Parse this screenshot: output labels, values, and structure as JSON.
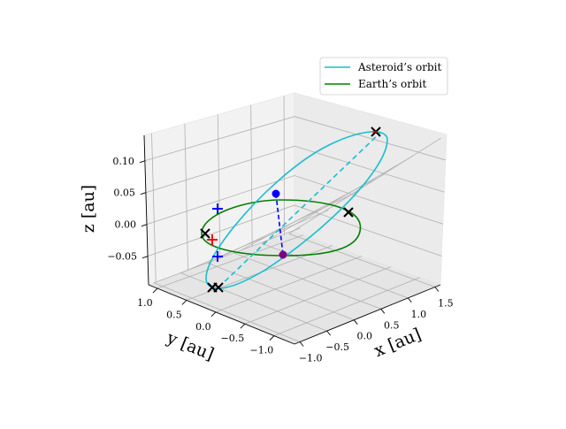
{
  "chart_data": {
    "type": "line",
    "projection": "3d",
    "xlabel": "x [au]",
    "ylabel": "y [au]",
    "zlabel": "z [au]",
    "xlim": [
      -1.1,
      1.6
    ],
    "ylim": [
      -1.35,
      1.15
    ],
    "zlim": [
      -0.095,
      0.14
    ],
    "x_ticks": [
      "−1.0",
      "−0.5",
      "0.0",
      "0.5",
      "1.0",
      "1.5"
    ],
    "y_ticks": [
      "1.0",
      "0.5",
      "0.0",
      "−0.5",
      "−1.0"
    ],
    "z_ticks": [
      "0.10",
      "0.05",
      "0.00",
      "−0.05"
    ],
    "grid": true,
    "legend_position": "upper-right",
    "series": [
      {
        "name": "Asteroid’s orbit",
        "color": "#17becf",
        "shape": "ellipse",
        "semi_major_axis": 1.23,
        "eccentricity": 0.47,
        "inclination_deg": 4.6,
        "perihelion_xyz": [
          -0.5,
          -0.43,
          -0.014
        ],
        "aphelion_xyz": [
          1.3,
          1.11,
          0.1
        ]
      },
      {
        "name": "Earth’s orbit",
        "color": "#008000",
        "shape": "circle",
        "radius": 1.0,
        "z": 0
      }
    ],
    "markers": [
      {
        "symbol": "x",
        "color": "#000000",
        "points": [
          [
            1.3,
            1.11,
            0.1
          ],
          [
            0.95,
            -0.6,
            0.0
          ],
          [
            -0.42,
            -0.45,
            -0.013
          ],
          [
            -0.36,
            -0.49,
            -0.012
          ],
          [
            -0.05,
            0.96,
            0.0
          ]
        ]
      },
      {
        "symbol": "plus",
        "color": "#0000ff",
        "points": [
          [
            0.46,
            0.91,
            0.0
          ],
          [
            -0.78,
            0.25,
            0.0
          ]
        ]
      },
      {
        "symbol": "plus",
        "color": "#ff0000",
        "points": [
          [
            0.0,
            0.95,
            0.0
          ]
        ]
      },
      {
        "symbol": "dot",
        "color": "#0000ff",
        "points": [
          [
            0.33,
            0.29,
            0.05
          ]
        ]
      },
      {
        "symbol": "dot",
        "color": "#800080",
        "points": [
          [
            0.33,
            0.29,
            0.0
          ]
        ]
      }
    ],
    "segments": [
      {
        "style": "dashed",
        "color": "#0000ff",
        "from": [
          0.33,
          0.29,
          0.05
        ],
        "to": [
          0.33,
          0.29,
          0.0
        ]
      }
    ]
  }
}
